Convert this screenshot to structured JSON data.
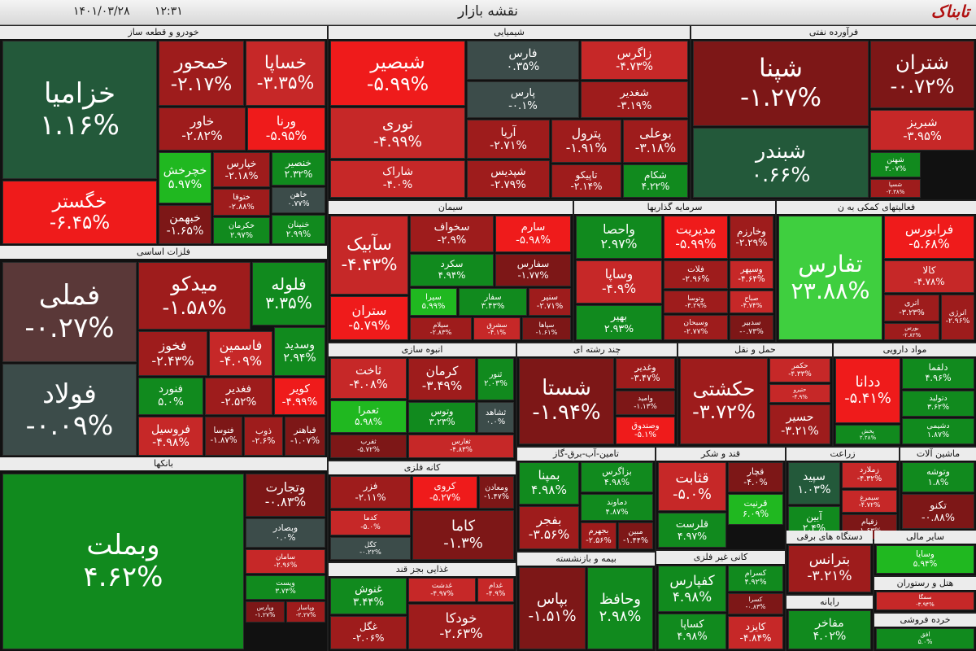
{
  "header": {
    "title": "نقشه بازار",
    "date": "۱۴۰۱/۰۳/۲۸",
    "time": "۱۲:۳۱",
    "logo": "تابناک"
  },
  "sectors": [
    {
      "name": "خودرو و قطعه ساز",
      "tiles": [
        {
          "symbol": "خزامیا",
          "change": "۱.۱۶%"
        },
        {
          "symbol": "خگستر",
          "change": "-۶.۴۵%"
        },
        {
          "symbol": "خمحور",
          "change": "-۲.۱۷%"
        },
        {
          "symbol": "خساپا",
          "change": "-۳.۳۵%"
        },
        {
          "symbol": "خاور",
          "change": "-۲.۸۲%"
        },
        {
          "symbol": "ورنا",
          "change": "-۵.۹۵%"
        },
        {
          "symbol": "خچرخش",
          "change": "۵.۹۷%"
        },
        {
          "symbol": "خپارس",
          "change": "-۲.۱۸%"
        },
        {
          "symbol": "خنصیر",
          "change": "۲.۳۲%"
        },
        {
          "symbol": "ختوقا",
          "change": "-۲.۸۸%"
        },
        {
          "symbol": "خاهن",
          "change": "۰.۷۷%"
        },
        {
          "symbol": "خبهمن",
          "change": "-۱.۶۵%"
        },
        {
          "symbol": "خکرمان",
          "change": "۲.۹۷%"
        },
        {
          "symbol": "خنینان",
          "change": "۲.۹۹%"
        }
      ]
    },
    {
      "name": "فلزات اساسی",
      "tiles": [
        {
          "symbol": "فملی",
          "change": "-۰.۲۷%"
        },
        {
          "symbol": "فولاد",
          "change": "-۰.۰۹%"
        },
        {
          "symbol": "میدکو",
          "change": "-۱.۵۸%"
        },
        {
          "symbol": "فلوله",
          "change": "۳.۳۵%"
        },
        {
          "symbol": "فخوز",
          "change": "-۲.۴۳%"
        },
        {
          "symbol": "فاسمین",
          "change": "-۴.۰۹%"
        },
        {
          "symbol": "وسدید",
          "change": "۲.۹۴%"
        },
        {
          "symbol": "فنورد",
          "change": "۵.۰%"
        },
        {
          "symbol": "فغدیر",
          "change": "-۲.۵۲%"
        },
        {
          "symbol": "کویر",
          "change": "-۴.۹۹%"
        },
        {
          "symbol": "فروسیل",
          "change": "-۴.۹۸%"
        },
        {
          "symbol": "فتوسا",
          "change": "-۱.۸۷%"
        },
        {
          "symbol": "ذوب",
          "change": "-۲.۶%"
        },
        {
          "symbol": "فباهنر",
          "change": "-۱.۰۷%"
        }
      ]
    },
    {
      "name": "بانکها",
      "tiles": [
        {
          "symbol": "وبملت",
          "change": "۴.۶۲%"
        },
        {
          "symbol": "وتجارت",
          "change": "-۰.۸۳%"
        },
        {
          "symbol": "وبصادر",
          "change": "۰.۰%"
        },
        {
          "symbol": "سامان",
          "change": "-۲.۹۶%"
        },
        {
          "symbol": "ویست",
          "change": "۳.۷۴%"
        },
        {
          "symbol": "وپارس",
          "change": "-۱.۲۷%"
        },
        {
          "symbol": "وپاسار",
          "change": "-۲.۲۷%"
        }
      ]
    },
    {
      "name": "شیمیایی",
      "tiles": [
        {
          "symbol": "شبصیر",
          "change": "-۵.۹۹%"
        },
        {
          "symbol": "نوری",
          "change": "-۴.۹۹%"
        },
        {
          "symbol": "شاراک",
          "change": "-۴.۰%"
        },
        {
          "symbol": "فارس",
          "change": "۰.۳۵%"
        },
        {
          "symbol": "پارس",
          "change": "-۰.۱%"
        },
        {
          "symbol": "زاگرس",
          "change": "-۴.۷۳%"
        },
        {
          "symbol": "شغدیر",
          "change": "-۳.۱۹%"
        },
        {
          "symbol": "آریا",
          "change": "-۲.۷۱%"
        },
        {
          "symbol": "پترول",
          "change": "-۱.۹۱%"
        },
        {
          "symbol": "بوعلی",
          "change": "-۳.۱۸%"
        },
        {
          "symbol": "شپدیس",
          "change": "-۲.۷۹%"
        },
        {
          "symbol": "تاپیکو",
          "change": "-۲.۱۴%"
        },
        {
          "symbol": "شکام",
          "change": "۴.۲۲%"
        }
      ]
    },
    {
      "name": "فرآورده نفتی",
      "tiles": [
        {
          "symbol": "شپنا",
          "change": "-۱.۲۷%"
        },
        {
          "symbol": "شبندر",
          "change": "۰.۶۶%"
        },
        {
          "symbol": "شتران",
          "change": "-۰.۷۲%"
        },
        {
          "symbol": "شبریز",
          "change": "-۳.۹۵%"
        },
        {
          "symbol": "شهنن",
          "change": "۳.۰۷%"
        },
        {
          "symbol": "شسپا",
          "change": "-۲.۳۸%"
        }
      ]
    },
    {
      "name": "سیمان",
      "tiles": [
        {
          "symbol": "سآبیک",
          "change": "-۴.۴۳%"
        },
        {
          "symbol": "ستران",
          "change": "-۵.۷۹%"
        },
        {
          "symbol": "سخواف",
          "change": "-۲.۹%"
        },
        {
          "symbol": "سارم",
          "change": "-۵.۹۸%"
        },
        {
          "symbol": "سکرد",
          "change": "۴.۹۴%"
        },
        {
          "symbol": "سفارس",
          "change": "-۱.۷۷%"
        },
        {
          "symbol": "سیرا",
          "change": "۵.۹۹%"
        },
        {
          "symbol": "سفار",
          "change": "۳.۴۳%"
        },
        {
          "symbol": "سنیر",
          "change": "-۲.۷۱%"
        },
        {
          "symbol": "سیلام",
          "change": "-۲.۸۳%"
        },
        {
          "symbol": "سشرق",
          "change": "-۴.۱%"
        },
        {
          "symbol": "سپاها",
          "change": "-۱.۶۱%"
        }
      ]
    },
    {
      "name": "سرمایه گذاریها",
      "tiles": [
        {
          "symbol": "واحصا",
          "change": "۲.۹۷%"
        },
        {
          "symbol": "مدیریت",
          "change": "-۵.۹۹%"
        },
        {
          "symbol": "وخارزم",
          "change": "-۲.۲۹%"
        },
        {
          "symbol": "وساپا",
          "change": "-۴.۹%"
        },
        {
          "symbol": "فلات",
          "change": "-۲.۹۶%"
        },
        {
          "symbol": "وسپهر",
          "change": "-۴.۶۴%"
        },
        {
          "symbol": "بهیر",
          "change": "۲.۹۳%"
        },
        {
          "symbol": "وتوسا",
          "change": "-۳.۲۹%"
        },
        {
          "symbol": "صباح",
          "change": "-۴.۷۴%"
        },
        {
          "symbol": "وسبحان",
          "change": "-۲.۷۷%"
        },
        {
          "symbol": "سدبیر",
          "change": "-۰.۷۳%"
        }
      ]
    },
    {
      "name": "فعالیتهای کمکی به ن",
      "tiles": [
        {
          "symbol": "تفارس",
          "change": "۲۳.۸۸%"
        },
        {
          "symbol": "فرابورس",
          "change": "-۵.۶۸%"
        },
        {
          "symbol": "کالا",
          "change": "-۴.۷۸%"
        },
        {
          "symbol": "اتری",
          "change": "-۳.۲۳%"
        },
        {
          "symbol": "بورس",
          "change": "-۲.۸۲%"
        },
        {
          "symbol": "انرژی",
          "change": "-۲.۹۶%"
        }
      ]
    },
    {
      "name": "انبوه سازی",
      "tiles": [
        {
          "symbol": "ثاخت",
          "change": "-۴.۰۸%"
        },
        {
          "symbol": "ثعمرا",
          "change": "۵.۹۸%"
        },
        {
          "symbol": "ثفرب",
          "change": "-۵.۷۲%"
        },
        {
          "symbol": "کرمان",
          "change": "-۳.۴۹%"
        },
        {
          "symbol": "ثنور",
          "change": "۲.۰۳%"
        },
        {
          "symbol": "وتوس",
          "change": "۳.۲۳%"
        },
        {
          "symbol": "ثشاهد",
          "change": "۰.۰%"
        },
        {
          "symbol": "ثغارس",
          "change": "-۴.۸۳%"
        }
      ]
    },
    {
      "name": "چند رشته ای",
      "tiles": [
        {
          "symbol": "شستا",
          "change": "-۱.۹۴%"
        },
        {
          "symbol": "وغدیر",
          "change": "-۳.۴۷%"
        },
        {
          "symbol": "وامید",
          "change": "-۱.۱۳%"
        },
        {
          "symbol": "وصندوق",
          "change": "-۵.۱%"
        }
      ]
    },
    {
      "name": "حمل و نقل",
      "tiles": [
        {
          "symbol": "حکشتی",
          "change": "-۳.۷۲%"
        },
        {
          "symbol": "حکمر",
          "change": "-۴.۳۳%"
        },
        {
          "symbol": "حتیرو",
          "change": "-۴.۹%"
        },
        {
          "symbol": "حسیر",
          "change": "-۳.۲۱%"
        }
      ]
    },
    {
      "name": "مواد دارویی",
      "tiles": [
        {
          "symbol": "ددانا",
          "change": "-۵.۴۱%"
        },
        {
          "symbol": "پخش",
          "change": "۲.۲۸%"
        },
        {
          "symbol": "دلقما",
          "change": "۴.۹۶%"
        },
        {
          "symbol": "دتولید",
          "change": "۳.۶۲%"
        },
        {
          "symbol": "دشیمی",
          "change": "۱.۸۷%"
        }
      ]
    },
    {
      "name": "کانه فلزی",
      "tiles": [
        {
          "symbol": "فزر",
          "change": "-۲.۱۱%"
        },
        {
          "symbol": "کدما",
          "change": "-۵.۰%"
        },
        {
          "symbol": "کگل",
          "change": "-۰.۲۲%"
        },
        {
          "symbol": "کروی",
          "change": "-۵.۲۷%"
        },
        {
          "symbol": "ومعادن",
          "change": "-۱.۴۷%"
        },
        {
          "symbol": "کاما",
          "change": "-۱.۳%"
        }
      ]
    },
    {
      "name": "تامین-آب-برق-گاز",
      "tiles": [
        {
          "symbol": "بمپنا",
          "change": "۴.۹۸%"
        },
        {
          "symbol": "بفجر",
          "change": "-۳.۵۶%"
        },
        {
          "symbol": "بزاگرس",
          "change": "۴.۹۸%"
        },
        {
          "symbol": "دماوند",
          "change": "۴.۸۷%"
        },
        {
          "symbol": "بجهرم",
          "change": "-۲.۵۶%"
        },
        {
          "symbol": "مبین",
          "change": "-۱.۴۴%"
        }
      ]
    },
    {
      "name": "قند و شکر",
      "tiles": [
        {
          "symbol": "قثابت",
          "change": "-۵.۰%"
        },
        {
          "symbol": "قچار",
          "change": "-۴.۰%"
        },
        {
          "symbol": "قرنیت",
          "change": "۶.۰۹%"
        },
        {
          "symbol": "قلرست",
          "change": "۴.۹۷%"
        }
      ]
    },
    {
      "name": "زراعت",
      "tiles": [
        {
          "symbol": "سپید",
          "change": "۱.۰۳%"
        },
        {
          "symbol": "آبین",
          "change": "۲.۴%"
        },
        {
          "symbol": "زملارد",
          "change": "-۴.۳۲%"
        },
        {
          "symbol": "سیمرغ",
          "change": "-۴.۷۲%"
        },
        {
          "symbol": "زقیام",
          "change": "-۱.۶۳%"
        }
      ]
    },
    {
      "name": "ماشین آلات",
      "tiles": [
        {
          "symbol": "وتوشه",
          "change": "۱.۸%"
        },
        {
          "symbol": "تکنو",
          "change": "-۰.۸۸%"
        }
      ]
    },
    {
      "name": "بیمه و بازنشسته",
      "tiles": [
        {
          "symbol": "بپاس",
          "change": "-۱.۵۱%"
        },
        {
          "symbol": "وحافظ",
          "change": "۲.۹۸%"
        }
      ]
    },
    {
      "name": "غذایی بجز قند",
      "tiles": [
        {
          "symbol": "غنوش",
          "change": "۳.۴۴%"
        },
        {
          "symbol": "غگل",
          "change": "-۲.۰۶%"
        },
        {
          "symbol": "غدشت",
          "change": "-۴.۹۷%"
        },
        {
          "symbol": "غدام",
          "change": "-۴.۹%"
        },
        {
          "symbol": "خودکا",
          "change": "-۲.۶۳%"
        }
      ]
    },
    {
      "name": "کانی غیر فلزی",
      "tiles": [
        {
          "symbol": "کفپارس",
          "change": "۴.۹۸%"
        },
        {
          "symbol": "کساپا",
          "change": "۴.۹۸%"
        },
        {
          "symbol": "کسرام",
          "change": "۴.۹۲%"
        },
        {
          "symbol": "کسرا",
          "change": "-۰.۸۳%"
        },
        {
          "symbol": "کایزد",
          "change": "-۴.۸۴%"
        }
      ]
    },
    {
      "name": "دستگاه های برقی",
      "tiles": [
        {
          "symbol": "بترانس",
          "change": "-۳.۲۱%"
        }
      ]
    },
    {
      "name": "رایانه",
      "tiles": [
        {
          "symbol": "مفاخر",
          "change": "۴.۰۲%"
        }
      ]
    },
    {
      "name": "سایر مالی",
      "tiles": [
        {
          "symbol": "وسایا",
          "change": "۵.۹۴%"
        }
      ]
    },
    {
      "name": "هتل و رستوران",
      "tiles": [
        {
          "symbol": "سمگا",
          "change": "-۳.۹۴%"
        }
      ]
    },
    {
      "name": "خرده فروشی",
      "tiles": [
        {
          "symbol": "افق",
          "change": "۵.۰%"
        }
      ]
    }
  ]
}
